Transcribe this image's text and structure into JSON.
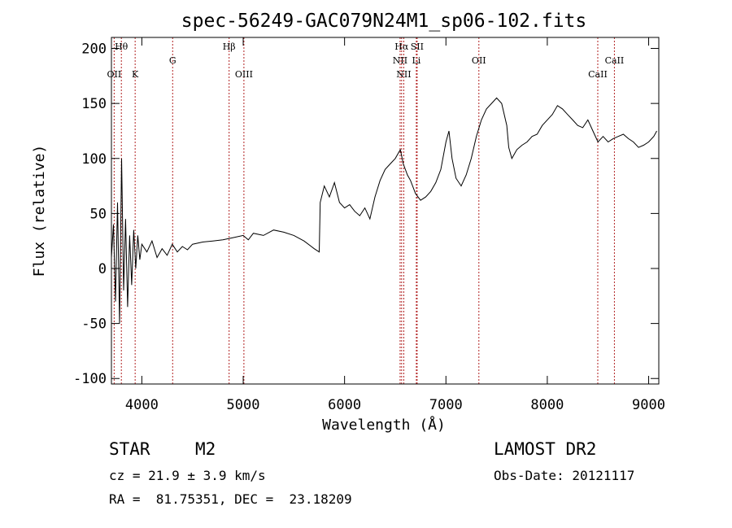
{
  "chart_data": {
    "type": "line",
    "title": "spec-56249-GAC079N24M1_sp06-102.fits",
    "xlabel": "Wavelength (Å)",
    "ylabel": "Flux (relative)",
    "xlim": [
      3700,
      9100
    ],
    "ylim": [
      -105,
      210
    ],
    "x_ticks": [
      4000,
      5000,
      6000,
      7000,
      8000,
      9000
    ],
    "y_ticks": [
      -100,
      -50,
      0,
      50,
      100,
      150,
      200
    ],
    "grid": false,
    "line_color": "#000000",
    "marker_color": "#b22222",
    "spectral_lines": [
      {
        "label": "Hθ",
        "wavelength": 3798,
        "row": 0
      },
      {
        "label": "OII",
        "wavelength": 3727,
        "row": 2
      },
      {
        "label": "K",
        "wavelength": 3934,
        "row": 2
      },
      {
        "label": "G",
        "wavelength": 4304,
        "row": 1
      },
      {
        "label": "Hβ",
        "wavelength": 4861,
        "row": 0
      },
      {
        "label": "OIII",
        "wavelength": 5007,
        "row": 2
      },
      {
        "label": "Hα",
        "wavelength": 6563,
        "row": 0
      },
      {
        "label": "SII",
        "wavelength": 6716,
        "row": 0
      },
      {
        "label": "NII",
        "wavelength": 6548,
        "row": 1
      },
      {
        "label": "Li",
        "wavelength": 6708,
        "row": 1
      },
      {
        "label": "NII",
        "wavelength": 6584,
        "row": 2
      },
      {
        "label": "OII",
        "wavelength": 7325,
        "row": 1
      },
      {
        "label": "CaII",
        "wavelength": 8662,
        "row": 1
      },
      {
        "label": "CaII",
        "wavelength": 8498,
        "row": 2
      }
    ],
    "series": [
      {
        "x": [
          3700,
          3720,
          3740,
          3760,
          3780,
          3800,
          3820,
          3840,
          3860,
          3880,
          3900,
          3920,
          3940,
          3960,
          3980,
          4000,
          4050,
          4100,
          4150,
          4200,
          4250,
          4300,
          4350,
          4400,
          4450,
          4500,
          4600,
          4700,
          4800,
          4900,
          5000,
          5050,
          5100,
          5200,
          5300,
          5400,
          5500,
          5600,
          5700,
          5750,
          5760,
          5800,
          5850,
          5900,
          5950,
          6000,
          6050,
          6100,
          6150,
          6200,
          6250,
          6300,
          6350,
          6400,
          6450,
          6500,
          6550,
          6580,
          6620,
          6650,
          6700,
          6750,
          6800,
          6850,
          6900,
          6950,
          7000,
          7030,
          7060,
          7100,
          7150,
          7200,
          7250,
          7300,
          7350,
          7400,
          7450,
          7500,
          7550,
          7600,
          7620,
          7650,
          7700,
          7750,
          7800,
          7850,
          7900,
          7950,
          8000,
          8050,
          8100,
          8150,
          8200,
          8250,
          8300,
          8350,
          8400,
          8450,
          8500,
          8550,
          8600,
          8650,
          8700,
          8750,
          8800,
          8850,
          8900,
          8950,
          9000,
          9050,
          9080
        ],
        "y": [
          10,
          40,
          -30,
          60,
          -50,
          100,
          -20,
          45,
          -35,
          30,
          -15,
          35,
          0,
          30,
          8,
          22,
          15,
          25,
          10,
          18,
          12,
          22,
          15,
          20,
          17,
          22,
          24,
          25,
          26,
          28,
          30,
          26,
          32,
          30,
          35,
          33,
          30,
          25,
          18,
          15,
          60,
          75,
          65,
          78,
          60,
          55,
          58,
          52,
          48,
          55,
          45,
          65,
          80,
          90,
          95,
          100,
          108,
          95,
          85,
          80,
          68,
          62,
          65,
          70,
          78,
          90,
          115,
          125,
          100,
          82,
          75,
          85,
          100,
          120,
          135,
          145,
          150,
          155,
          150,
          130,
          110,
          100,
          108,
          112,
          115,
          120,
          122,
          130,
          135,
          140,
          148,
          145,
          140,
          135,
          130,
          128,
          135,
          125,
          115,
          120,
          115,
          118,
          120,
          122,
          118,
          115,
          110,
          112,
          115,
          120,
          125
        ]
      }
    ]
  },
  "info": {
    "obj_class": "STAR",
    "subclass": "M2",
    "survey": "LAMOST DR2",
    "cz": "cz = 21.9 ± 3.9 km/s",
    "obs_date": "Obs-Date: 20121117",
    "coords": "RA =  81.75351, DEC =  23.18209"
  }
}
